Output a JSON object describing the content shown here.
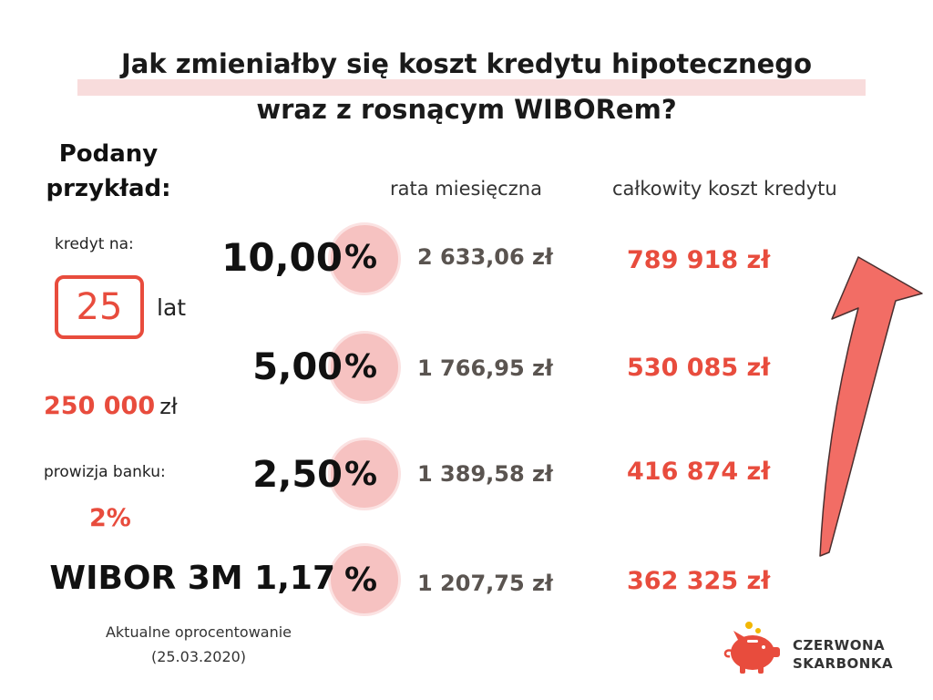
{
  "title": {
    "line1": "Jak zmieniałby się koszt kredytu hipotecznego",
    "line2": "wraz z rosnącym WIBORem?"
  },
  "example": {
    "heading_line1": "Podany",
    "heading_line2": "przykład:",
    "loan_label": "kredyt na:",
    "years_value": "25",
    "years_unit": "lat",
    "amount_value": "250 000",
    "amount_unit": "zł",
    "commission_label": "prowizja banku:",
    "commission_value": "2%"
  },
  "columns": {
    "monthly_header": "rata miesięczna",
    "total_header": "całkowity koszt kredytu"
  },
  "rows": [
    {
      "rate": "10,00",
      "percent": "%",
      "monthly": "2 633,06 zł",
      "total": "789 918 zł"
    },
    {
      "rate": "5,00",
      "percent": "%",
      "monthly": "1 766,95 zł",
      "total": "530 085 zł"
    },
    {
      "rate": "2,50",
      "percent": "%",
      "monthly": "1 389,58 zł",
      "total": "416 874 zł"
    },
    {
      "rate": "WIBOR 3M 1,17",
      "percent": "%",
      "monthly": "1 207,75 zł",
      "total": "362 325 zł"
    }
  ],
  "footnote": {
    "line1": "Aktualne oprocentowanie",
    "line2": "(25.03.2020)"
  },
  "logo": {
    "line1": "CZERWONA",
    "line2": "SKARBONKA"
  },
  "colors": {
    "accent_red": "#e84c3d",
    "circle_pink": "#f6c2c1",
    "arrow": "#f26d65",
    "title_underline": "#f8dcdc"
  },
  "icons": [
    "rising-arrow-icon",
    "piggy-bank-logo-icon"
  ]
}
